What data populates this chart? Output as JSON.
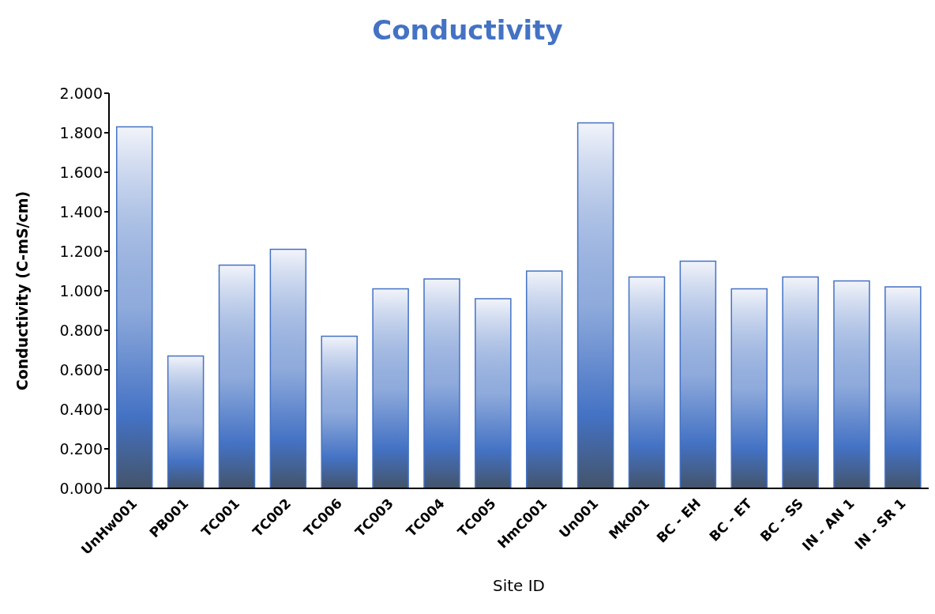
{
  "chart_data": {
    "type": "bar",
    "title": "Conductivity",
    "xlabel": "Site ID",
    "ylabel": "Conductivity (C-mS/cm)",
    "categories": [
      "UnHw001",
      "PB001",
      "TC001",
      "TC002",
      "TC006",
      "TC003",
      "TC004",
      "TC005",
      "HmC001",
      "Un001",
      "Mk001",
      "BC - EH",
      "BC - ET",
      "BC - SS",
      "IN - AN 1",
      "IN - SR 1"
    ],
    "values": [
      1.83,
      0.67,
      1.13,
      1.21,
      0.77,
      1.01,
      1.06,
      0.96,
      1.1,
      1.85,
      1.07,
      1.15,
      1.01,
      1.07,
      1.05,
      1.02
    ],
    "color": "#4472c4",
    "ylim": [
      0,
      2
    ],
    "yticks": [
      {
        "value": 0,
        "label": "0.000"
      },
      {
        "value": 0.2,
        "label": "0.200"
      },
      {
        "value": 0.4,
        "label": "0.400"
      },
      {
        "value": 0.6,
        "label": "0.600"
      },
      {
        "value": 0.8,
        "label": "0.800"
      },
      {
        "value": 1,
        "label": "1.000"
      },
      {
        "value": 1.2,
        "label": "1.200"
      },
      {
        "value": 1.4,
        "label": "1.400"
      },
      {
        "value": 1.6,
        "label": "1.600"
      },
      {
        "value": 1.8,
        "label": "1.800"
      },
      {
        "value": 2,
        "label": "2.000"
      }
    ],
    "grid": false
  }
}
